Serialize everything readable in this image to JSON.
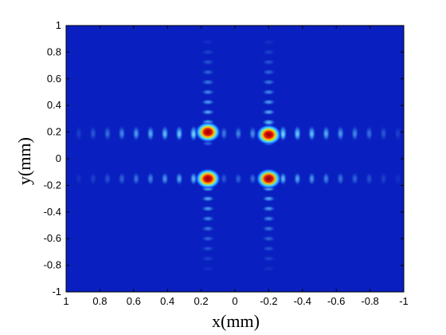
{
  "chart_data": {
    "type": "heatmap",
    "title": "",
    "xlabel": "x(mm)",
    "ylabel": "y(mm)",
    "xlim": [
      1,
      -1
    ],
    "ylim": [
      -1,
      1
    ],
    "x_reversed": true,
    "x_ticks": [
      1,
      0.8,
      0.6,
      0.4,
      0.2,
      0,
      -0.2,
      -0.4,
      -0.6,
      -0.8,
      -1
    ],
    "x_tick_labels": [
      "1",
      "0.8",
      "0.6",
      "0.4",
      "0.2",
      "0",
      "-0.2",
      "-0.4",
      "-0.6",
      "-0.8",
      "-1"
    ],
    "y_ticks": [
      1,
      0.8,
      0.6,
      0.4,
      0.2,
      0,
      -0.2,
      -0.4,
      -0.6,
      -0.8,
      -1
    ],
    "y_tick_labels": [
      "1",
      "0.8",
      "0.6",
      "0.4",
      "0.2",
      "0",
      "-0.2",
      "-0.4",
      "-0.6",
      "-0.8",
      "-1"
    ],
    "colormap": "jet",
    "background_color": "#0a1fbf",
    "grid": false,
    "peaks": [
      {
        "x": 0.16,
        "y": 0.2,
        "intensity": 1.0
      },
      {
        "x": -0.2,
        "y": 0.18,
        "intensity": 1.0
      },
      {
        "x": 0.16,
        "y": -0.15,
        "intensity": 1.0
      },
      {
        "x": -0.2,
        "y": -0.15,
        "intensity": 0.95
      }
    ],
    "fringe_pattern": "cross-shaped interference fringes decaying away from the four main lobes along x and y"
  }
}
